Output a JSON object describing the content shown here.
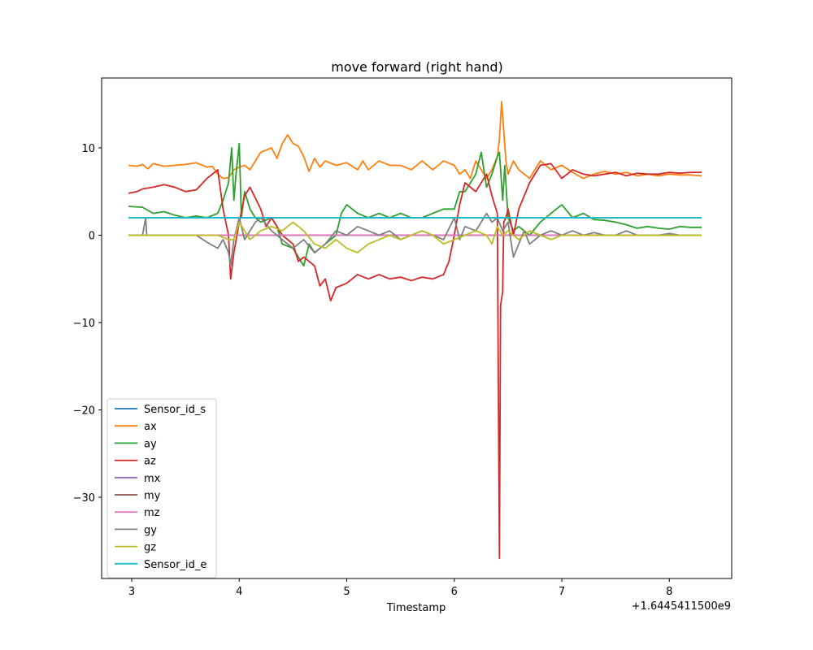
{
  "chart_data": {
    "type": "line",
    "title": "move forward (right hand)",
    "xlabel": "Timestamp",
    "ylabel": "",
    "x_offset_text": "+1.6445411500e9",
    "xlim": [
      2.72,
      8.58
    ],
    "ylim": [
      -39.3,
      18.0
    ],
    "x_ticks": [
      3,
      4,
      5,
      6,
      7,
      8
    ],
    "y_ticks": [
      10,
      0,
      -10,
      -20,
      -30
    ],
    "x_tick_labels": [
      "3",
      "4",
      "5",
      "6",
      "7",
      "8"
    ],
    "y_tick_labels": [
      "10",
      "0",
      "−10",
      "−20",
      "−30"
    ],
    "grid": false,
    "legend_position": "lower-left",
    "series": [
      {
        "name": "Sensor_id_s",
        "color": "#1f77b4",
        "x": [
          2.97,
          8.3
        ],
        "y": [
          2.0,
          2.0
        ]
      },
      {
        "name": "ax",
        "color": "#ff7f0e",
        "x": [
          2.97,
          3.05,
          3.1,
          3.15,
          3.2,
          3.3,
          3.4,
          3.5,
          3.6,
          3.7,
          3.75,
          3.8,
          3.85,
          3.9,
          3.95,
          4.0,
          4.05,
          4.1,
          4.15,
          4.2,
          4.3,
          4.35,
          4.4,
          4.45,
          4.5,
          4.55,
          4.6,
          4.65,
          4.7,
          4.75,
          4.8,
          4.9,
          5.0,
          5.1,
          5.15,
          5.2,
          5.3,
          5.4,
          5.5,
          5.6,
          5.7,
          5.8,
          5.9,
          6.0,
          6.05,
          6.1,
          6.15,
          6.2,
          6.25,
          6.3,
          6.35,
          6.4,
          6.42,
          6.44,
          6.46,
          6.48,
          6.5,
          6.55,
          6.6,
          6.7,
          6.8,
          6.9,
          7.0,
          7.1,
          7.2,
          7.3,
          7.4,
          7.5,
          7.6,
          7.7,
          7.8,
          7.9,
          8.0,
          8.1,
          8.2,
          8.3
        ],
        "y": [
          8.0,
          7.9,
          8.1,
          7.6,
          8.2,
          7.9,
          8.0,
          8.1,
          8.3,
          7.8,
          7.9,
          7.0,
          6.5,
          6.6,
          7.5,
          7.8,
          8.0,
          7.5,
          8.5,
          9.5,
          10.0,
          8.8,
          10.5,
          11.5,
          10.5,
          10.2,
          9.0,
          7.3,
          8.8,
          7.8,
          8.5,
          8.0,
          8.3,
          7.5,
          8.5,
          7.5,
          8.5,
          8.0,
          8.0,
          7.5,
          8.5,
          7.5,
          8.5,
          8.0,
          7.0,
          7.5,
          6.5,
          8.5,
          7.5,
          6.5,
          7.5,
          9.0,
          11.0,
          15.3,
          12.0,
          8.5,
          7.0,
          8.5,
          7.5,
          6.5,
          8.5,
          7.5,
          8.0,
          7.2,
          6.5,
          7.0,
          7.3,
          7.0,
          7.2,
          6.8,
          7.0,
          6.8,
          7.0,
          6.9,
          6.9,
          6.8
        ]
      },
      {
        "name": "ay",
        "color": "#2ca02c",
        "x": [
          2.97,
          3.1,
          3.2,
          3.3,
          3.4,
          3.5,
          3.6,
          3.7,
          3.8,
          3.85,
          3.9,
          3.93,
          3.95,
          3.97,
          4.0,
          4.02,
          4.05,
          4.1,
          4.15,
          4.2,
          4.3,
          4.35,
          4.4,
          4.5,
          4.6,
          4.65,
          4.7,
          4.8,
          4.9,
          4.95,
          5.0,
          5.1,
          5.2,
          5.3,
          5.4,
          5.5,
          5.6,
          5.7,
          5.8,
          5.9,
          6.0,
          6.05,
          6.1,
          6.2,
          6.25,
          6.3,
          6.35,
          6.4,
          6.42,
          6.45,
          6.47,
          6.5,
          6.55,
          6.6,
          6.7,
          6.8,
          6.9,
          7.0,
          7.1,
          7.2,
          7.3,
          7.4,
          7.5,
          7.6,
          7.7,
          7.8,
          7.9,
          8.0,
          8.1,
          8.2,
          8.3
        ],
        "y": [
          3.3,
          3.2,
          2.5,
          2.7,
          2.3,
          2.0,
          2.2,
          2.0,
          2.5,
          4.0,
          6.0,
          10.0,
          4.0,
          7.0,
          10.5,
          2.0,
          5.0,
          3.0,
          2.0,
          1.5,
          2.0,
          1.0,
          -1.0,
          -1.5,
          -3.5,
          -1.0,
          -2.0,
          -1.0,
          0.0,
          2.5,
          3.5,
          2.5,
          2.0,
          2.5,
          2.0,
          2.5,
          2.0,
          2.0,
          2.5,
          3.0,
          3.0,
          5.0,
          5.0,
          7.0,
          9.5,
          5.5,
          7.0,
          9.0,
          9.5,
          4.0,
          8.0,
          2.0,
          0.5,
          1.0,
          0.0,
          1.5,
          2.5,
          3.5,
          2.0,
          2.5,
          1.8,
          1.7,
          1.5,
          1.2,
          0.8,
          1.0,
          0.8,
          0.7,
          1.0,
          0.9,
          0.9
        ]
      },
      {
        "name": "az",
        "color": "#d62728",
        "x": [
          2.97,
          3.05,
          3.1,
          3.2,
          3.3,
          3.4,
          3.5,
          3.6,
          3.7,
          3.75,
          3.8,
          3.85,
          3.9,
          3.92,
          3.95,
          4.0,
          4.05,
          4.1,
          4.2,
          4.25,
          4.3,
          4.4,
          4.5,
          4.55,
          4.6,
          4.7,
          4.75,
          4.8,
          4.85,
          4.9,
          5.0,
          5.1,
          5.2,
          5.3,
          5.4,
          5.5,
          5.6,
          5.7,
          5.8,
          5.9,
          5.95,
          6.0,
          6.05,
          6.1,
          6.2,
          6.3,
          6.35,
          6.4,
          6.42,
          6.43,
          6.45,
          6.46,
          6.48,
          6.5,
          6.55,
          6.6,
          6.7,
          6.8,
          6.9,
          7.0,
          7.1,
          7.2,
          7.3,
          7.4,
          7.5,
          7.6,
          7.7,
          7.8,
          7.9,
          8.0,
          8.1,
          8.2,
          8.3
        ],
        "y": [
          4.8,
          5.0,
          5.3,
          5.5,
          5.8,
          5.5,
          5.0,
          5.2,
          6.5,
          7.0,
          7.5,
          3.0,
          0.0,
          -5.0,
          -2.0,
          1.5,
          4.5,
          5.5,
          3.0,
          1.0,
          2.0,
          0.0,
          -1.0,
          -3.0,
          -2.5,
          -3.5,
          -5.8,
          -5.0,
          -7.5,
          -6.0,
          -5.5,
          -4.5,
          -5.0,
          -4.5,
          -5.0,
          -4.8,
          -5.2,
          -4.8,
          -5.0,
          -4.5,
          -3.0,
          0.0,
          3.5,
          6.0,
          5.0,
          7.0,
          4.5,
          2.5,
          -37.0,
          -8.0,
          -6.5,
          1.5,
          2.0,
          3.0,
          0.0,
          3.0,
          6.0,
          8.0,
          8.2,
          6.5,
          7.5,
          7.0,
          6.8,
          7.0,
          7.2,
          6.8,
          7.1,
          7.0,
          7.0,
          7.2,
          7.1,
          7.2,
          7.2
        ]
      },
      {
        "name": "mx",
        "color": "#9467bd",
        "x": [
          2.97,
          8.3
        ],
        "y": [
          0.0,
          0.0
        ]
      },
      {
        "name": "my",
        "color": "#8c564b",
        "x": [
          2.97,
          8.3
        ],
        "y": [
          0.0,
          0.0
        ]
      },
      {
        "name": "mz",
        "color": "#e377c2",
        "x": [
          2.97,
          8.3
        ],
        "y": [
          0.0,
          0.0
        ]
      },
      {
        "name": "gy",
        "color": "#7f7f7f",
        "x": [
          2.97,
          3.1,
          3.13,
          3.14,
          3.2,
          3.4,
          3.6,
          3.7,
          3.8,
          3.85,
          3.9,
          3.92,
          3.95,
          4.0,
          4.05,
          4.1,
          4.15,
          4.2,
          4.3,
          4.4,
          4.5,
          4.6,
          4.7,
          4.8,
          4.9,
          5.0,
          5.1,
          5.2,
          5.3,
          5.4,
          5.5,
          5.6,
          5.7,
          5.8,
          5.9,
          6.0,
          6.05,
          6.1,
          6.2,
          6.3,
          6.35,
          6.4,
          6.45,
          6.5,
          6.55,
          6.6,
          6.65,
          6.7,
          6.8,
          6.9,
          7.0,
          7.1,
          7.2,
          7.3,
          7.4,
          7.5,
          7.6,
          7.7,
          7.8,
          7.9,
          8.0,
          8.1,
          8.2,
          8.3
        ],
        "y": [
          0.0,
          0.0,
          2.0,
          0.0,
          0.0,
          0.0,
          0.0,
          -0.8,
          -1.5,
          -0.5,
          -2.0,
          -3.5,
          -0.5,
          2.0,
          -0.5,
          0.5,
          1.5,
          2.0,
          0.5,
          -0.5,
          -1.5,
          -0.5,
          -2.0,
          -1.0,
          0.5,
          0.0,
          1.0,
          0.5,
          0.0,
          0.5,
          -0.5,
          0.0,
          0.5,
          0.0,
          -0.5,
          2.0,
          -0.5,
          1.0,
          0.5,
          2.5,
          1.5,
          2.0,
          0.5,
          1.5,
          -2.5,
          -1.0,
          0.5,
          -1.0,
          0.0,
          0.5,
          0.0,
          0.5,
          0.0,
          0.3,
          0.0,
          0.0,
          0.5,
          0.0,
          0.0,
          0.0,
          0.2,
          0.0,
          0.0,
          0.0
        ]
      },
      {
        "name": "gz",
        "color": "#bcbd22",
        "x": [
          2.97,
          3.2,
          3.4,
          3.6,
          3.8,
          3.9,
          3.95,
          4.0,
          4.1,
          4.2,
          4.3,
          4.4,
          4.5,
          4.6,
          4.7,
          4.8,
          4.9,
          5.0,
          5.1,
          5.2,
          5.3,
          5.4,
          5.5,
          5.6,
          5.7,
          5.8,
          5.9,
          6.0,
          6.1,
          6.2,
          6.3,
          6.35,
          6.4,
          6.45,
          6.5,
          6.6,
          6.7,
          6.8,
          6.9,
          7.0,
          7.1,
          7.2,
          7.4,
          7.6,
          7.8,
          8.0,
          8.2,
          8.3
        ],
        "y": [
          0.0,
          0.0,
          0.0,
          0.0,
          0.0,
          -0.5,
          -0.5,
          1.5,
          -0.5,
          0.5,
          1.0,
          0.5,
          1.5,
          0.5,
          -1.0,
          -1.5,
          -0.5,
          -1.5,
          -2.0,
          -1.0,
          -0.5,
          0.0,
          -0.5,
          0.0,
          0.5,
          0.0,
          -1.0,
          -0.5,
          0.0,
          0.5,
          0.0,
          -1.0,
          1.0,
          0.0,
          0.5,
          -0.5,
          0.5,
          0.0,
          -0.5,
          0.0,
          0.0,
          0.0,
          0.0,
          0.0,
          0.0,
          0.0,
          0.0,
          0.0
        ]
      },
      {
        "name": "Sensor_id_e",
        "color": "#17becf",
        "x": [
          2.97,
          8.3
        ],
        "y": [
          2.0,
          2.0
        ]
      }
    ]
  }
}
